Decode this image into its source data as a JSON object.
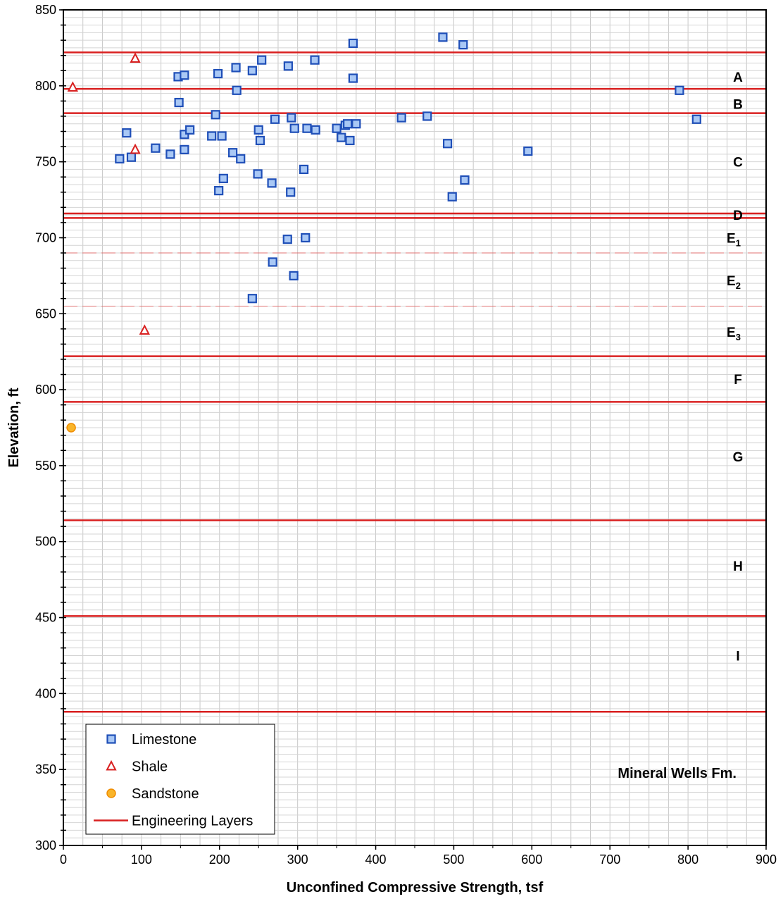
{
  "chart_data": {
    "type": "scatter",
    "title": "",
    "xlabel": "Unconfined Compressive Strength, tsf",
    "ylabel": "Elevation, ft",
    "xlim": [
      0,
      900
    ],
    "ylim": [
      300,
      850
    ],
    "x_ticks": [
      0,
      100,
      200,
      300,
      400,
      500,
      600,
      700,
      800,
      900
    ],
    "y_ticks": [
      300,
      350,
      400,
      450,
      500,
      550,
      600,
      650,
      700,
      750,
      800,
      850
    ],
    "grid": true,
    "legend_position": "bottom-left",
    "annotation": "Mineral Wells Fm.",
    "series": [
      {
        "name": "Limestone",
        "marker": "square",
        "color": "#3a6fd8",
        "points": [
          [
            72,
            752
          ],
          [
            81,
            769
          ],
          [
            87,
            753
          ],
          [
            118,
            759
          ],
          [
            137,
            755
          ],
          [
            147,
            806
          ],
          [
            148,
            789
          ],
          [
            155,
            807
          ],
          [
            155,
            768
          ],
          [
            155,
            758
          ],
          [
            162,
            771
          ],
          [
            190,
            767
          ],
          [
            195,
            781
          ],
          [
            198,
            808
          ],
          [
            199,
            731
          ],
          [
            203,
            767
          ],
          [
            205,
            739
          ],
          [
            217,
            756
          ],
          [
            221,
            812
          ],
          [
            222,
            797
          ],
          [
            227,
            752
          ],
          [
            242,
            810
          ],
          [
            242,
            660
          ],
          [
            249,
            742
          ],
          [
            250,
            771
          ],
          [
            252,
            764
          ],
          [
            254,
            817
          ],
          [
            267,
            736
          ],
          [
            268,
            684
          ],
          [
            271,
            778
          ],
          [
            287,
            699
          ],
          [
            288,
            813
          ],
          [
            291,
            730
          ],
          [
            292,
            779
          ],
          [
            295,
            675
          ],
          [
            296,
            772
          ],
          [
            308,
            745
          ],
          [
            310,
            700
          ],
          [
            312,
            772
          ],
          [
            322,
            817
          ],
          [
            323,
            771
          ],
          [
            350,
            772
          ],
          [
            356,
            766
          ],
          [
            361,
            774
          ],
          [
            364,
            775
          ],
          [
            367,
            764
          ],
          [
            371,
            828
          ],
          [
            371,
            805
          ],
          [
            375,
            775
          ],
          [
            433,
            779
          ],
          [
            466,
            780
          ],
          [
            486,
            832
          ],
          [
            492,
            762
          ],
          [
            498,
            727
          ],
          [
            512,
            827
          ],
          [
            514,
            738
          ],
          [
            595,
            757
          ],
          [
            789,
            797
          ],
          [
            811,
            778
          ]
        ]
      },
      {
        "name": "Shale",
        "marker": "triangle",
        "color": "#d92020",
        "points": [
          [
            12,
            799
          ],
          [
            92,
            818
          ],
          [
            92,
            758
          ],
          [
            104,
            639
          ]
        ]
      },
      {
        "name": "Sandstone",
        "marker": "circle",
        "color": "#f5a100",
        "points": [
          [
            10,
            575
          ]
        ]
      },
      {
        "name": "Engineering Layers",
        "marker": "line",
        "color": "#d92020",
        "boundaries_solid": [
          822,
          798,
          782,
          716,
          713,
          622,
          592,
          514,
          451,
          388
        ],
        "boundaries_dashed": [
          690,
          655
        ]
      }
    ],
    "layer_labels": [
      {
        "main": "A",
        "sub": "",
        "y": 806
      },
      {
        "main": "B",
        "sub": "",
        "y": 788
      },
      {
        "main": "C",
        "sub": "",
        "y": 750
      },
      {
        "main": "D",
        "sub": "",
        "y": 715
      },
      {
        "main": "E",
        "sub": "1",
        "y": 700
      },
      {
        "main": "E",
        "sub": "2",
        "y": 672
      },
      {
        "main": "E",
        "sub": "3",
        "y": 638
      },
      {
        "main": "F",
        "sub": "",
        "y": 607
      },
      {
        "main": "G",
        "sub": "",
        "y": 556
      },
      {
        "main": "H",
        "sub": "",
        "y": 484
      },
      {
        "main": "I",
        "sub": "",
        "y": 425
      }
    ]
  }
}
